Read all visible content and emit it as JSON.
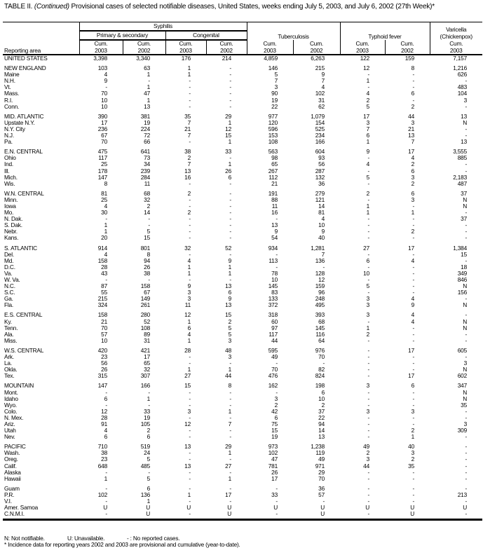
{
  "title": {
    "prefix": "TABLE II. ",
    "continued": "(Continued)",
    "text": " Provisional cases of selected notifiable diseases, United States, weeks ending July 5, 2003, and July 6, 2002 (27th Week)*"
  },
  "header": {
    "syphilis": "Syphilis",
    "primary_secondary": "Primary & secondary",
    "congenital": "Congenital",
    "tuberculosis": "Tuberculosis",
    "typhoid": "Typhoid fever",
    "varicella": "Varicella (Chickenpox)",
    "reporting_area": "Reporting area",
    "columns": [
      "Cum. 2003",
      "Cum. 2002",
      "Cum. 2003",
      "Cum. 2002",
      "Cum. 2003",
      "Cum. 2002",
      "Cum. 2003",
      "Cum. 2002",
      "Cum. 2003"
    ]
  },
  "groups": [
    [
      [
        "UNITED STATES",
        "3,398",
        "3,340",
        "176",
        "214",
        "4,859",
        "6,263",
        "122",
        "159",
        "7,157"
      ]
    ],
    [
      [
        "NEW ENGLAND",
        "103",
        "63",
        "1",
        "-",
        "146",
        "215",
        "12",
        "8",
        "1,216"
      ],
      [
        "Maine",
        "4",
        "1",
        "1",
        "-",
        "5",
        "9",
        "-",
        "-",
        "626"
      ],
      [
        "N.H.",
        "9",
        "-",
        "-",
        "-",
        "7",
        "7",
        "1",
        "-",
        "-"
      ],
      [
        "Vt.",
        "-",
        "1",
        "-",
        "-",
        "3",
        "4",
        "-",
        "-",
        "483"
      ],
      [
        "Mass.",
        "70",
        "47",
        "-",
        "-",
        "90",
        "102",
        "4",
        "6",
        "104"
      ],
      [
        "R.I.",
        "10",
        "1",
        "-",
        "-",
        "19",
        "31",
        "2",
        "-",
        "3"
      ],
      [
        "Conn.",
        "10",
        "13",
        "-",
        "-",
        "22",
        "62",
        "5",
        "2",
        "-"
      ]
    ],
    [
      [
        "MID. ATLANTIC",
        "390",
        "381",
        "35",
        "29",
        "977",
        "1,079",
        "17",
        "44",
        "13"
      ],
      [
        "Upstate N.Y.",
        "17",
        "19",
        "7",
        "1",
        "120",
        "154",
        "3",
        "3",
        "N"
      ],
      [
        "N.Y. City",
        "236",
        "224",
        "21",
        "12",
        "596",
        "525",
        "7",
        "21",
        "-"
      ],
      [
        "N.J.",
        "67",
        "72",
        "7",
        "15",
        "153",
        "234",
        "6",
        "13",
        "-"
      ],
      [
        "Pa.",
        "70",
        "66",
        "-",
        "1",
        "108",
        "166",
        "1",
        "7",
        "13"
      ]
    ],
    [
      [
        "E.N. CENTRAL",
        "475",
        "641",
        "38",
        "33",
        "563",
        "604",
        "9",
        "17",
        "3,555"
      ],
      [
        "Ohio",
        "117",
        "73",
        "2",
        "-",
        "98",
        "93",
        "-",
        "4",
        "885"
      ],
      [
        "Ind.",
        "25",
        "34",
        "7",
        "1",
        "65",
        "56",
        "4",
        "2",
        "-"
      ],
      [
        "Ill.",
        "178",
        "239",
        "13",
        "26",
        "267",
        "287",
        "-",
        "6",
        "-"
      ],
      [
        "Mich.",
        "147",
        "284",
        "16",
        "6",
        "112",
        "132",
        "5",
        "3",
        "2,183"
      ],
      [
        "Wis.",
        "8",
        "11",
        "-",
        "-",
        "21",
        "36",
        "-",
        "2",
        "487"
      ]
    ],
    [
      [
        "W.N. CENTRAL",
        "81",
        "68",
        "2",
        "-",
        "191",
        "279",
        "2",
        "6",
        "37"
      ],
      [
        "Minn.",
        "25",
        "32",
        "-",
        "-",
        "88",
        "121",
        "-",
        "3",
        "N"
      ],
      [
        "Iowa",
        "4",
        "2",
        "-",
        "-",
        "11",
        "14",
        "1",
        "-",
        "N"
      ],
      [
        "Mo.",
        "30",
        "14",
        "2",
        "-",
        "16",
        "81",
        "1",
        "1",
        "-"
      ],
      [
        "N. Dak.",
        "-",
        "-",
        "-",
        "-",
        "-",
        "4",
        "-",
        "-",
        "37"
      ],
      [
        "S. Dak.",
        "1",
        "-",
        "-",
        "-",
        "13",
        "10",
        "-",
        "-",
        "-"
      ],
      [
        "Nebr.",
        "1",
        "5",
        "-",
        "-",
        "9",
        "9",
        "-",
        "2",
        "-"
      ],
      [
        "Kans.",
        "20",
        "15",
        "-",
        "-",
        "54",
        "40",
        "-",
        "-",
        "-"
      ]
    ],
    [
      [
        "S. ATLANTIC",
        "914",
        "801",
        "32",
        "52",
        "934",
        "1,281",
        "27",
        "17",
        "1,384"
      ],
      [
        "Del.",
        "4",
        "8",
        "-",
        "-",
        "-",
        "7",
        "-",
        "-",
        "15"
      ],
      [
        "Md.",
        "158",
        "94",
        "4",
        "9",
        "113",
        "136",
        "6",
        "4",
        "-"
      ],
      [
        "D.C.",
        "28",
        "26",
        "1",
        "1",
        "-",
        "-",
        "-",
        "-",
        "18"
      ],
      [
        "Va.",
        "43",
        "38",
        "1",
        "1",
        "78",
        "128",
        "10",
        "-",
        "349"
      ],
      [
        "W. Va.",
        "-",
        "-",
        "-",
        "-",
        "10",
        "12",
        "-",
        "-",
        "846"
      ],
      [
        "N.C.",
        "87",
        "158",
        "9",
        "13",
        "145",
        "159",
        "5",
        "-",
        "N"
      ],
      [
        "S.C.",
        "55",
        "67",
        "3",
        "6",
        "83",
        "96",
        "-",
        "-",
        "156"
      ],
      [
        "Ga.",
        "215",
        "149",
        "3",
        "9",
        "133",
        "248",
        "3",
        "4",
        "-"
      ],
      [
        "Fla.",
        "324",
        "261",
        "11",
        "13",
        "372",
        "495",
        "3",
        "9",
        "N"
      ]
    ],
    [
      [
        "E.S. CENTRAL",
        "158",
        "280",
        "12",
        "15",
        "318",
        "393",
        "3",
        "4",
        "-"
      ],
      [
        "Ky.",
        "21",
        "52",
        "1",
        "2",
        "60",
        "68",
        "-",
        "4",
        "N"
      ],
      [
        "Tenn.",
        "70",
        "108",
        "6",
        "5",
        "97",
        "145",
        "1",
        "-",
        "N"
      ],
      [
        "Ala.",
        "57",
        "89",
        "4",
        "5",
        "117",
        "116",
        "2",
        "-",
        "-"
      ],
      [
        "Miss.",
        "10",
        "31",
        "1",
        "3",
        "44",
        "64",
        "-",
        "-",
        "-"
      ]
    ],
    [
      [
        "W.S. CENTRAL",
        "420",
        "421",
        "28",
        "48",
        "595",
        "976",
        "-",
        "17",
        "605"
      ],
      [
        "Ark.",
        "23",
        "17",
        "-",
        "3",
        "49",
        "70",
        "-",
        "-",
        "-"
      ],
      [
        "La.",
        "56",
        "65",
        "-",
        "-",
        "-",
        "-",
        "-",
        "-",
        "3"
      ],
      [
        "Okla.",
        "26",
        "32",
        "1",
        "1",
        "70",
        "82",
        "-",
        "-",
        "N"
      ],
      [
        "Tex.",
        "315",
        "307",
        "27",
        "44",
        "476",
        "824",
        "-",
        "17",
        "602"
      ]
    ],
    [
      [
        "MOUNTAIN",
        "147",
        "166",
        "15",
        "8",
        "162",
        "198",
        "3",
        "6",
        "347"
      ],
      [
        "Mont.",
        "-",
        "-",
        "-",
        "-",
        "-",
        "6",
        "-",
        "-",
        "N"
      ],
      [
        "Idaho",
        "6",
        "1",
        "-",
        "-",
        "3",
        "10",
        "-",
        "-",
        "N"
      ],
      [
        "Wyo.",
        "-",
        "-",
        "-",
        "-",
        "2",
        "2",
        "-",
        "-",
        "35"
      ],
      [
        "Colo.",
        "12",
        "33",
        "3",
        "1",
        "42",
        "37",
        "3",
        "3",
        "-"
      ],
      [
        "N. Mex.",
        "28",
        "19",
        "-",
        "-",
        "6",
        "22",
        "-",
        "-",
        "-"
      ],
      [
        "Ariz.",
        "91",
        "105",
        "12",
        "7",
        "75",
        "94",
        "-",
        "-",
        "3"
      ],
      [
        "Utah",
        "4",
        "2",
        "-",
        "-",
        "15",
        "14",
        "-",
        "2",
        "309"
      ],
      [
        "Nev.",
        "6",
        "6",
        "-",
        "-",
        "19",
        "13",
        "-",
        "1",
        "-"
      ]
    ],
    [
      [
        "PACIFIC",
        "710",
        "519",
        "13",
        "29",
        "973",
        "1,238",
        "49",
        "40",
        "-"
      ],
      [
        "Wash.",
        "38",
        "24",
        "-",
        "1",
        "102",
        "119",
        "2",
        "3",
        "-"
      ],
      [
        "Oreg.",
        "23",
        "5",
        "-",
        "-",
        "47",
        "49",
        "3",
        "2",
        "-"
      ],
      [
        "Calif.",
        "648",
        "485",
        "13",
        "27",
        "781",
        "971",
        "44",
        "35",
        "-"
      ],
      [
        "Alaska",
        "-",
        "-",
        "-",
        "-",
        "26",
        "29",
        "-",
        "-",
        "-"
      ],
      [
        "Hawaii",
        "1",
        "5",
        "-",
        "1",
        "17",
        "70",
        "-",
        "-",
        "-"
      ]
    ],
    [
      [
        "Guam",
        "-",
        "6",
        "-",
        "-",
        "-",
        "36",
        "-",
        "-",
        "-"
      ],
      [
        "P.R.",
        "102",
        "136",
        "1",
        "17",
        "33",
        "57",
        "-",
        "-",
        "213"
      ],
      [
        "V.I.",
        "-",
        "1",
        "-",
        "-",
        "-",
        "-",
        "-",
        "-",
        "-"
      ],
      [
        "Amer. Samoa",
        "U",
        "U",
        "U",
        "U",
        "U",
        "U",
        "U",
        "U",
        "U"
      ],
      [
        "C.N.M.I.",
        "-",
        "U",
        "-",
        "U",
        "-",
        "U",
        "-",
        "U",
        "-"
      ]
    ]
  ],
  "notes": {
    "n": "N: Not notifiable.",
    "u": "U: Unavailable.",
    "dash": "- : No reported cases.",
    "footnote": "* Incidence data for reporting years 2002 and 2003 are provisional and cumulative (year-to-date)."
  }
}
